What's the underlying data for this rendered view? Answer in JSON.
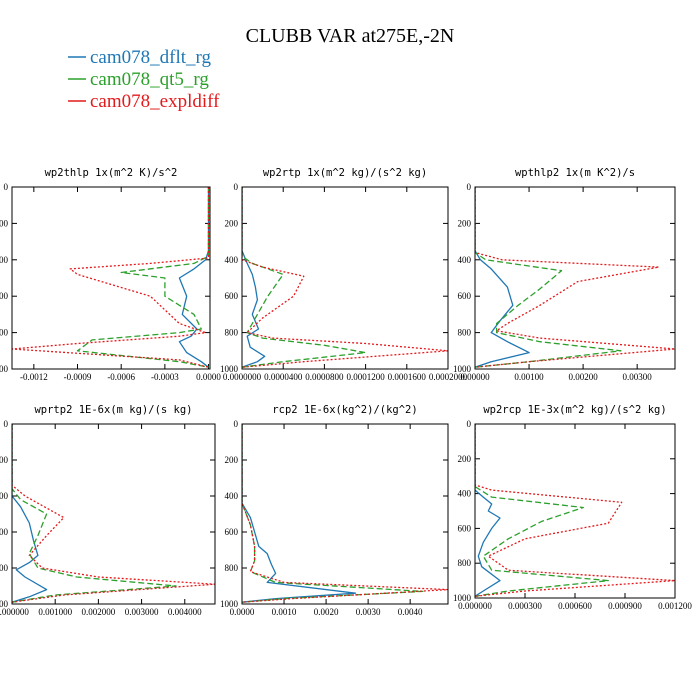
{
  "figure": {
    "title": "CLUBB VAR at275E,-2N"
  },
  "legend": [
    {
      "name": "cam078_dflt_rg",
      "color": "#1f77b4"
    },
    {
      "name": "cam078_qt5_rg",
      "color": "#2ca02c"
    },
    {
      "name": "cam078_expldiff",
      "color": "#e31a1c"
    }
  ],
  "chart_data": [
    {
      "type": "line",
      "title": "wp2thlp  1x(m^2 K)/s^2",
      "xlim": [
        -0.00135,
        1e-05
      ],
      "ylim": [
        0,
        1000
      ],
      "xticks": [
        "-0.0012",
        "-0.0009",
        "-0.0006",
        "-0.0003",
        "0.0000"
      ],
      "xtick_values": [
        -0.0012,
        -0.0009,
        -0.0006,
        -0.0003,
        0.0
      ],
      "yticks": [
        "0",
        "200",
        "400",
        "600",
        "800",
        "1000"
      ],
      "ytick_values": [
        0,
        200,
        400,
        600,
        800,
        1000
      ],
      "series": [
        {
          "name": "cam078_dflt_rg",
          "x": [
            0,
            0,
            -2e-05,
            -0.0001,
            -0.0002,
            -0.00015,
            -0.00018,
            -8e-05,
            -0.00012,
            -0.0002,
            -0.00015,
            -5e-05,
            0
          ],
          "y": [
            0,
            350,
            400,
            450,
            500,
            600,
            700,
            780,
            820,
            850,
            910,
            960,
            990
          ]
        },
        {
          "name": "cam078_qt5_rg",
          "x": [
            0,
            0,
            -0.0001,
            -0.0006,
            -0.0003,
            -0.0003,
            -0.0001,
            -5e-05,
            -0.0002,
            -0.0008,
            -0.0009,
            -0.0002,
            0
          ],
          "y": [
            0,
            380,
            420,
            470,
            500,
            600,
            700,
            780,
            800,
            840,
            900,
            960,
            990
          ]
        },
        {
          "name": "cam078_expldiff",
          "x": [
            0,
            0,
            -0.0004,
            -0.00095,
            -0.0009,
            -0.0004,
            -0.0002,
            -2e-05,
            -0.0002,
            -0.0009,
            -0.00135,
            -0.0002,
            0
          ],
          "y": [
            0,
            390,
            420,
            450,
            480,
            600,
            750,
            800,
            820,
            860,
            890,
            950,
            990
          ]
        }
      ]
    },
    {
      "type": "line",
      "title": "wp2rtp  1x(m^2 kg)/(s^2 kg)",
      "xlim": [
        0,
        0.0002
      ],
      "ylim": [
        0,
        1000
      ],
      "xticks": [
        "0.0000000",
        "0.0000400",
        "0.0000800",
        "0.0001200",
        "0.0001600",
        "0.0002000"
      ],
      "xtick_values": [
        0,
        4e-05,
        8e-05,
        0.00012,
        0.00016,
        0.0002
      ],
      "yticks": [
        "0",
        "200",
        "400",
        "600",
        "800",
        "1000"
      ],
      "ytick_values": [
        0,
        200,
        400,
        600,
        800,
        1000
      ],
      "series": [
        {
          "name": "cam078_dflt_rg",
          "x": [
            0,
            0,
            5e-06,
            1e-05,
            1.3e-05,
            1.5e-05,
            1e-05,
            1.6e-05,
            5e-06,
            8e-06,
            2.2e-05,
            1.5e-05,
            0
          ],
          "y": [
            0,
            350,
            420,
            480,
            550,
            620,
            700,
            780,
            820,
            880,
            930,
            960,
            990
          ]
        },
        {
          "name": "cam078_qt5_rg",
          "x": [
            0,
            0,
            1e-05,
            4e-05,
            2.5e-05,
            1.5e-05,
            5e-06,
            2e-05,
            8e-05,
            0.00012,
            4e-05,
            0
          ],
          "y": [
            0,
            380,
            420,
            480,
            600,
            700,
            800,
            830,
            870,
            910,
            960,
            990
          ]
        },
        {
          "name": "cam078_expldiff",
          "x": [
            0,
            0,
            2e-05,
            6e-05,
            5e-05,
            2e-05,
            5e-06,
            3e-05,
            0.00012,
            0.0002,
            6e-05,
            0
          ],
          "y": [
            0,
            400,
            440,
            490,
            600,
            720,
            800,
            830,
            860,
            900,
            960,
            990
          ]
        }
      ]
    },
    {
      "type": "line",
      "title": "wpthlp2  1x(m K^2)/s",
      "xlim": [
        0,
        0.0037
      ],
      "ylim": [
        0,
        1000
      ],
      "xticks": [
        "0.00000",
        "0.00100",
        "0.00200",
        "0.00300"
      ],
      "xtick_values": [
        0,
        0.001,
        0.002,
        0.003
      ],
      "yticks": [
        "0",
        "200",
        "400",
        "600",
        "800",
        "1000"
      ],
      "ytick_values": [
        0,
        200,
        400,
        600,
        800,
        1000
      ],
      "series": [
        {
          "name": "cam078_dflt_rg",
          "x": [
            0,
            0,
            0.0001,
            0.0003,
            0.0006,
            0.0007,
            0.00045,
            0.0003,
            0.0006,
            0.001,
            0.0003,
            0
          ],
          "y": [
            0,
            350,
            400,
            450,
            550,
            650,
            740,
            800,
            850,
            910,
            960,
            990
          ]
        },
        {
          "name": "cam078_qt5_rg",
          "x": [
            0,
            0,
            0.0002,
            0.0016,
            0.0012,
            0.0008,
            0.0004,
            0.0004,
            0.0012,
            0.0027,
            0.001,
            0
          ],
          "y": [
            0,
            360,
            400,
            460,
            560,
            650,
            750,
            800,
            850,
            900,
            960,
            990
          ]
        },
        {
          "name": "cam078_expldiff",
          "x": [
            0,
            0,
            0.0005,
            0.0034,
            0.0019,
            0.0012,
            0.0006,
            0.0004,
            0.0012,
            0.0037,
            0.001,
            0
          ],
          "y": [
            0,
            360,
            400,
            440,
            520,
            650,
            750,
            790,
            830,
            890,
            960,
            990
          ]
        }
      ]
    },
    {
      "type": "line",
      "title": "wprtp2  1E-6x(m kg)/(s kg)",
      "xlim": [
        0,
        0.0047
      ],
      "ylim": [
        0,
        1000
      ],
      "xticks": [
        "0.000000",
        "0.001000",
        "0.002000",
        "0.003000",
        "0.004000"
      ],
      "xtick_values": [
        0,
        0.001,
        0.002,
        0.003,
        0.004
      ],
      "yticks": [
        "0",
        "200",
        "400",
        "600",
        "800",
        "1000"
      ],
      "ytick_values": [
        0,
        200,
        400,
        600,
        800,
        1000
      ],
      "series": [
        {
          "name": "cam078_dflt_rg",
          "x": [
            0,
            0,
            0.0002,
            0.0004,
            0.0005,
            0.0006,
            0.0004,
            0.0001,
            0.0003,
            0.0008,
            0.0004,
            0
          ],
          "y": [
            0,
            400,
            460,
            550,
            650,
            730,
            770,
            810,
            850,
            920,
            960,
            990
          ]
        },
        {
          "name": "cam078_qt5_rg",
          "x": [
            0,
            0,
            0.0002,
            0.0008,
            0.0006,
            0.0004,
            0.0006,
            0.0015,
            0.0038,
            0.001,
            0
          ],
          "y": [
            0,
            360,
            420,
            500,
            620,
            720,
            800,
            850,
            900,
            950,
            990
          ]
        },
        {
          "name": "cam078_expldiff",
          "x": [
            0,
            0,
            0.0003,
            0.0012,
            0.0008,
            0.0004,
            0.0007,
            0.002,
            0.0047,
            0.0012,
            0
          ],
          "y": [
            0,
            340,
            400,
            520,
            620,
            730,
            800,
            850,
            890,
            950,
            990
          ]
        }
      ]
    },
    {
      "type": "line",
      "title": "rcp2  1E-6x(kg^2)/(kg^2)",
      "xlim": [
        0,
        0.0049
      ],
      "ylim": [
        0,
        1000
      ],
      "xticks": [
        "0.0000",
        "0.0010",
        "0.0020",
        "0.0030",
        "0.0040"
      ],
      "xtick_values": [
        0,
        0.001,
        0.002,
        0.003,
        0.004
      ],
      "yticks": [
        "0",
        "200",
        "400",
        "600",
        "800",
        "1000"
      ],
      "ytick_values": [
        0,
        200,
        400,
        600,
        800,
        1000
      ],
      "series": [
        {
          "name": "cam078_dflt_rg",
          "x": [
            0,
            0,
            0.0002,
            0.0003,
            0.0004,
            0.0006,
            0.0007,
            0.0008,
            0.0006,
            0.0027,
            0.0008,
            0
          ],
          "y": [
            0,
            440,
            520,
            600,
            680,
            720,
            780,
            830,
            880,
            940,
            970,
            990
          ]
        },
        {
          "name": "cam078_qt5_rg",
          "x": [
            0,
            0,
            0.0002,
            0.0003,
            0.0003,
            0.0002,
            0.0008,
            0.0043,
            0.001,
            0
          ],
          "y": [
            0,
            440,
            560,
            680,
            760,
            820,
            880,
            930,
            970,
            990
          ]
        },
        {
          "name": "cam078_expldiff",
          "x": [
            0,
            0,
            0.0002,
            0.0003,
            0.0003,
            0.0002,
            0.001,
            0.0049,
            0.0012,
            0
          ],
          "y": [
            0,
            440,
            560,
            680,
            760,
            820,
            880,
            920,
            970,
            990
          ]
        }
      ]
    },
    {
      "type": "line",
      "title": "wp2rcp  1E-3x(m^2 kg)/(s^2 kg)",
      "xlim": [
        0,
        0.0012
      ],
      "ylim": [
        0,
        1000
      ],
      "xticks": [
        "0.000000",
        "0.000300",
        "0.000600",
        "0.000900",
        "0.001200"
      ],
      "xtick_values": [
        0,
        0.0003,
        0.0006,
        0.0009,
        0.0012
      ],
      "yticks": [
        "0",
        "200",
        "400",
        "600",
        "800",
        "1000"
      ],
      "ytick_values": [
        0,
        200,
        400,
        600,
        800,
        1000
      ],
      "series": [
        {
          "name": "cam078_dflt_rg",
          "x": [
            0,
            0,
            5e-05,
            0.0001,
            8e-05,
            0.00015,
            0.0001,
            5e-05,
            2e-05,
            4e-05,
            0.00015,
            5e-05,
            0
          ],
          "y": [
            0,
            380,
            420,
            460,
            500,
            540,
            600,
            680,
            760,
            820,
            900,
            960,
            990
          ]
        },
        {
          "name": "cam078_qt5_rg",
          "x": [
            0,
            0,
            0.0001,
            0.00065,
            0.0004,
            0.0002,
            5e-05,
            0.0001,
            0.0008,
            0.0002,
            0
          ],
          "y": [
            0,
            360,
            420,
            480,
            560,
            660,
            760,
            840,
            900,
            960,
            990
          ]
        },
        {
          "name": "cam078_expldiff",
          "x": [
            0,
            0,
            0.0001,
            0.00088,
            0.0008,
            0.0003,
            8e-05,
            0.0002,
            0.0012,
            0.0003,
            0
          ],
          "y": [
            0,
            350,
            380,
            450,
            570,
            660,
            760,
            840,
            900,
            960,
            990
          ]
        }
      ]
    }
  ]
}
